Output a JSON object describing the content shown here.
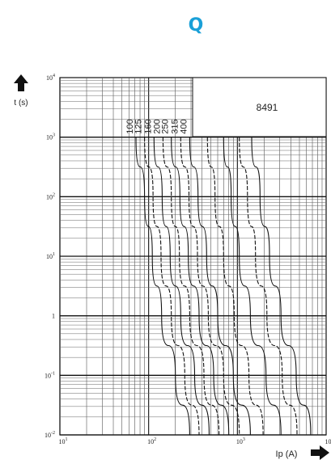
{
  "brand": {
    "logo_text": "Q",
    "color": "#1aa0d8"
  },
  "chart_data": {
    "type": "line",
    "title": "",
    "code": "8491",
    "xlabel": "Ip (A)",
    "ylabel": "t (s)",
    "xscale": "log",
    "yscale": "log",
    "xlim": [
      10,
      10000
    ],
    "ylim": [
      0.01,
      10000
    ],
    "grid": true,
    "x_ticks": [
      {
        "value": 10,
        "base": "10",
        "exp": "1"
      },
      {
        "value": 100,
        "base": "10",
        "exp": "2"
      },
      {
        "value": 1000,
        "base": "10",
        "exp": "3"
      },
      {
        "value": 10000,
        "base": "10",
        "exp": "4"
      }
    ],
    "y_ticks": [
      {
        "value": 0.01,
        "base": "10",
        "exp": "-2"
      },
      {
        "value": 0.1,
        "base": "10",
        "exp": "-1"
      },
      {
        "value": 1,
        "base": "1",
        "exp": ""
      },
      {
        "value": 10,
        "base": "10",
        "exp": "1"
      },
      {
        "value": 100,
        "base": "10",
        "exp": "2"
      },
      {
        "value": 1000,
        "base": "10",
        "exp": "3"
      },
      {
        "value": 10000,
        "base": "10",
        "exp": "4"
      }
    ],
    "series": [
      {
        "name": "100",
        "points": [
          [
            72,
            1000
          ],
          [
            90,
            100
          ],
          [
            110,
            10
          ],
          [
            140,
            1
          ],
          [
            200,
            0.1
          ],
          [
            290,
            0.01
          ]
        ]
      },
      {
        "name": "125",
        "points": [
          [
            90,
            1000
          ],
          [
            112,
            100
          ],
          [
            138,
            10
          ],
          [
            180,
            1
          ],
          [
            255,
            0.1
          ],
          [
            370,
            0.01
          ]
        ]
      },
      {
        "name": "160",
        "points": [
          [
            115,
            1000
          ],
          [
            142,
            100
          ],
          [
            175,
            10
          ],
          [
            230,
            1
          ],
          [
            330,
            0.1
          ],
          [
            480,
            0.01
          ]
        ]
      },
      {
        "name": "200",
        "points": [
          [
            145,
            1000
          ],
          [
            180,
            100
          ],
          [
            222,
            10
          ],
          [
            290,
            1
          ],
          [
            420,
            0.1
          ],
          [
            620,
            0.01
          ]
        ]
      },
      {
        "name": "250",
        "points": [
          [
            180,
            1000
          ],
          [
            225,
            100
          ],
          [
            280,
            10
          ],
          [
            370,
            1
          ],
          [
            540,
            0.1
          ],
          [
            800,
            0.01
          ]
        ]
      },
      {
        "name": "315",
        "points": [
          [
            230,
            1000
          ],
          [
            285,
            100
          ],
          [
            355,
            10
          ],
          [
            470,
            1
          ],
          [
            700,
            0.1
          ],
          [
            1050,
            0.01
          ]
        ]
      },
      {
        "name": "400",
        "points": [
          [
            290,
            1000
          ],
          [
            360,
            100
          ],
          [
            450,
            10
          ],
          [
            600,
            1
          ],
          [
            900,
            0.1
          ],
          [
            1400,
            0.01
          ]
        ]
      },
      {
        "name": "",
        "points": [
          [
            460,
            1000
          ],
          [
            560,
            100
          ],
          [
            700,
            10
          ],
          [
            920,
            1
          ],
          [
            1350,
            0.1
          ],
          [
            1950,
            0.01
          ]
        ]
      },
      {
        "name": "",
        "points": [
          [
            700,
            1000
          ],
          [
            850,
            100
          ],
          [
            1050,
            10
          ],
          [
            1400,
            1
          ],
          [
            2100,
            0.1
          ],
          [
            3100,
            0.01
          ]
        ]
      },
      {
        "name": "",
        "points": [
          [
            1050,
            1000
          ],
          [
            1300,
            100
          ],
          [
            1600,
            10
          ],
          [
            2150,
            1
          ],
          [
            3200,
            0.1
          ],
          [
            4700,
            0.01
          ]
        ]
      },
      {
        "name": "",
        "points": [
          [
            1450,
            1000
          ],
          [
            1800,
            100
          ],
          [
            2300,
            10
          ],
          [
            3100,
            1
          ],
          [
            4600,
            0.1
          ],
          [
            6700,
            0.01
          ]
        ]
      }
    ]
  }
}
